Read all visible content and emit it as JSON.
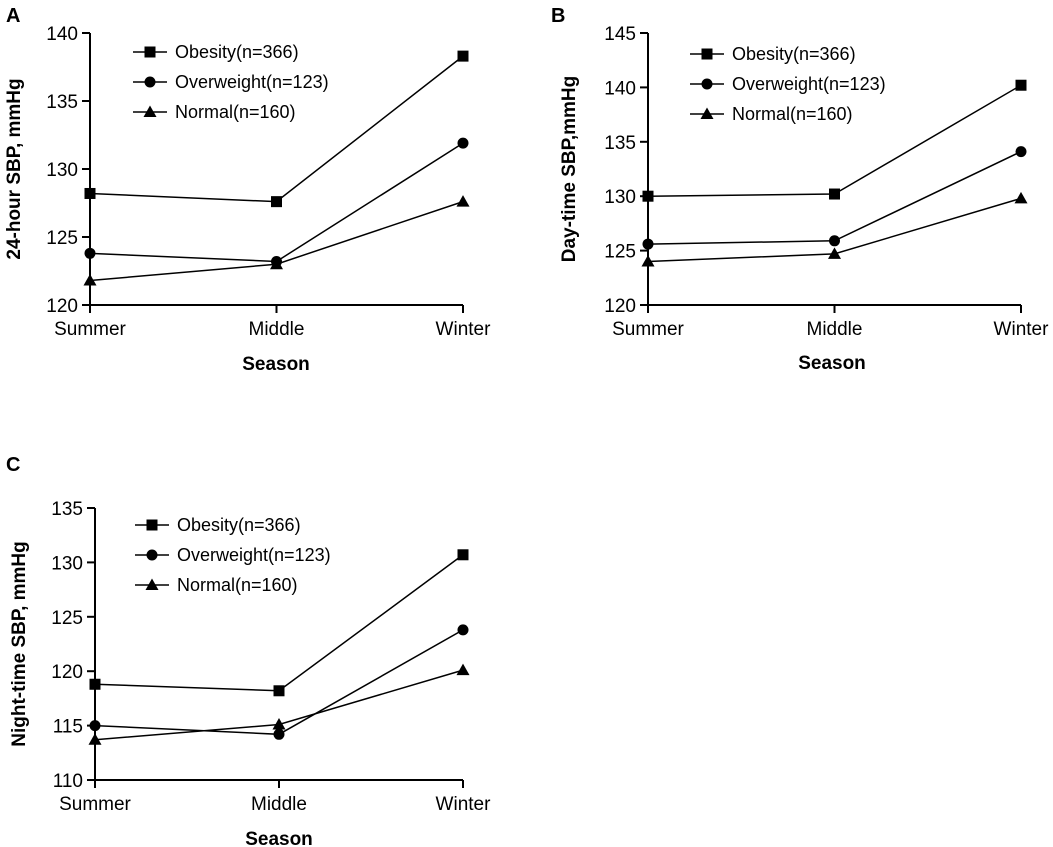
{
  "chart_data": [
    {
      "panel": "A",
      "type": "line",
      "title": "",
      "xlabel": "Season",
      "ylabel": "24-hour SBP, mmHg",
      "categories": [
        "Summer",
        "Middle",
        "Winter"
      ],
      "ylim": [
        120,
        140
      ],
      "yticks": [
        120,
        125,
        130,
        135,
        140
      ],
      "legend_position": "top-left",
      "series": [
        {
          "name": "Obesity(n=366)",
          "marker": "square",
          "values": [
            128.2,
            127.6,
            138.3
          ]
        },
        {
          "name": "Overweight(n=123)",
          "marker": "circle",
          "values": [
            123.8,
            123.2,
            131.9
          ]
        },
        {
          "name": "Normal(n=160)",
          "marker": "triangle",
          "values": [
            121.8,
            123.0,
            127.6
          ]
        }
      ]
    },
    {
      "panel": "B",
      "type": "line",
      "title": "",
      "xlabel": "Season",
      "ylabel": "Day-time SBP,mmHg",
      "categories": [
        "Summer",
        "Middle",
        "Winter"
      ],
      "ylim": [
        120,
        145
      ],
      "yticks": [
        120,
        125,
        130,
        135,
        140,
        145
      ],
      "legend_position": "top-left",
      "series": [
        {
          "name": "Obesity(n=366)",
          "marker": "square",
          "values": [
            130.0,
            130.2,
            140.2
          ]
        },
        {
          "name": "Overweight(n=123)",
          "marker": "circle",
          "values": [
            125.6,
            125.9,
            134.1
          ]
        },
        {
          "name": "Normal(n=160)",
          "marker": "triangle",
          "values": [
            124.0,
            124.7,
            129.8
          ]
        }
      ]
    },
    {
      "panel": "C",
      "type": "line",
      "title": "",
      "xlabel": "Season",
      "ylabel": "Night-time SBP, mmHg",
      "categories": [
        "Summer",
        "Middle",
        "Winter"
      ],
      "ylim": [
        110,
        135
      ],
      "yticks": [
        110,
        115,
        120,
        125,
        130,
        135
      ],
      "legend_position": "top-left",
      "series": [
        {
          "name": "Obesity(n=366)",
          "marker": "square",
          "values": [
            118.8,
            118.2,
            130.7
          ]
        },
        {
          "name": "Overweight(n=123)",
          "marker": "circle",
          "values": [
            115.0,
            114.2,
            123.8
          ]
        },
        {
          "name": "Normal(n=160)",
          "marker": "triangle",
          "values": [
            113.7,
            115.1,
            120.1
          ]
        }
      ]
    }
  ],
  "colors": {
    "line": "#000000",
    "background": "#ffffff"
  }
}
